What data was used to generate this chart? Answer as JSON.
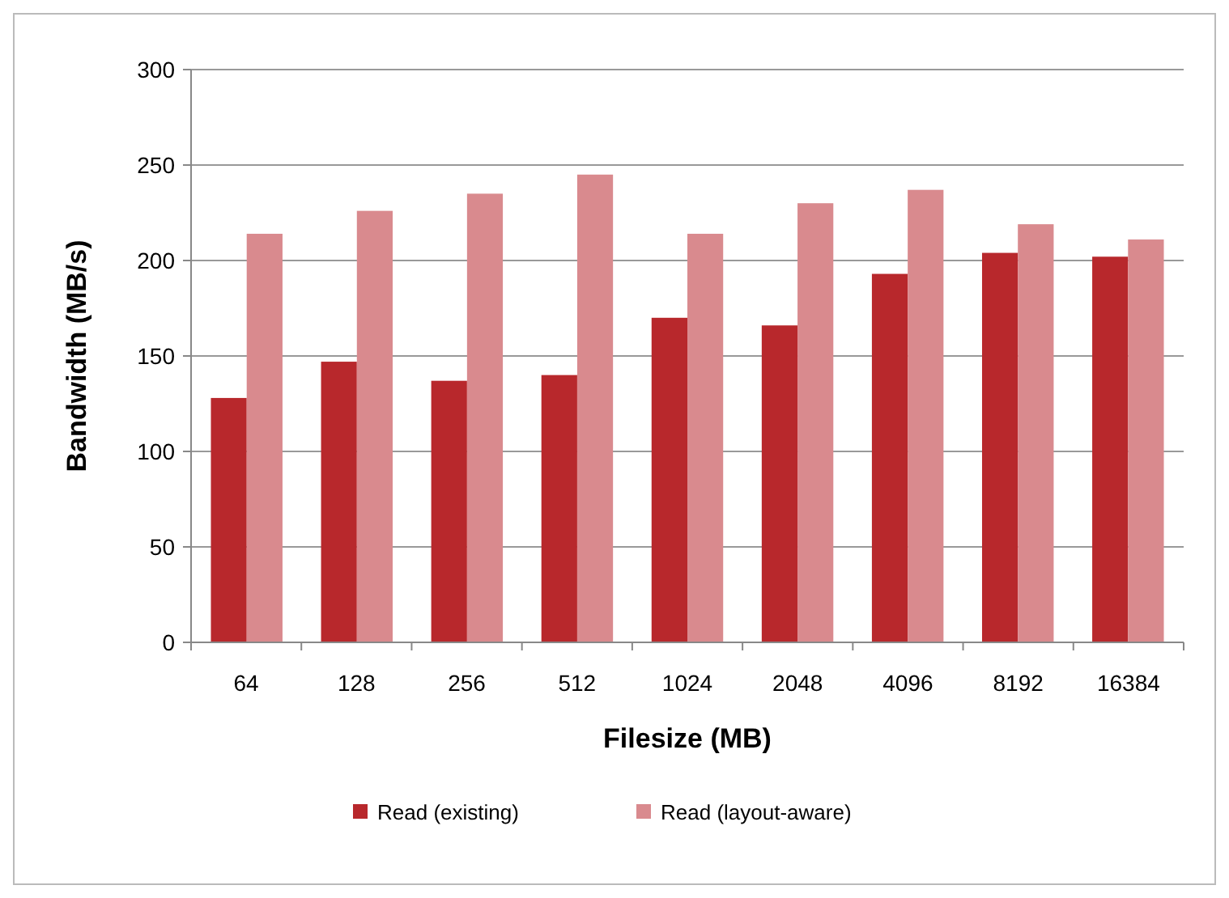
{
  "chart_data": {
    "type": "bar",
    "xlabel": "Filesize (MB)",
    "ylabel": "Bandwidth (MB/s)",
    "categories": [
      "64",
      "128",
      "256",
      "512",
      "1024",
      "2048",
      "4096",
      "8192",
      "16384"
    ],
    "series": [
      {
        "name": "Read (existing)",
        "color": "#b8282c",
        "values": [
          128,
          147,
          137,
          140,
          170,
          166,
          193,
          204,
          202
        ]
      },
      {
        "name": "Read (layout-aware)",
        "color": "#d98a8e",
        "values": [
          214,
          226,
          235,
          245,
          214,
          230,
          237,
          219,
          211
        ]
      }
    ],
    "ylim": [
      0,
      300
    ],
    "yticks": [
      0,
      50,
      100,
      150,
      200,
      250,
      300
    ],
    "grid": "y",
    "legend": "bottom"
  }
}
